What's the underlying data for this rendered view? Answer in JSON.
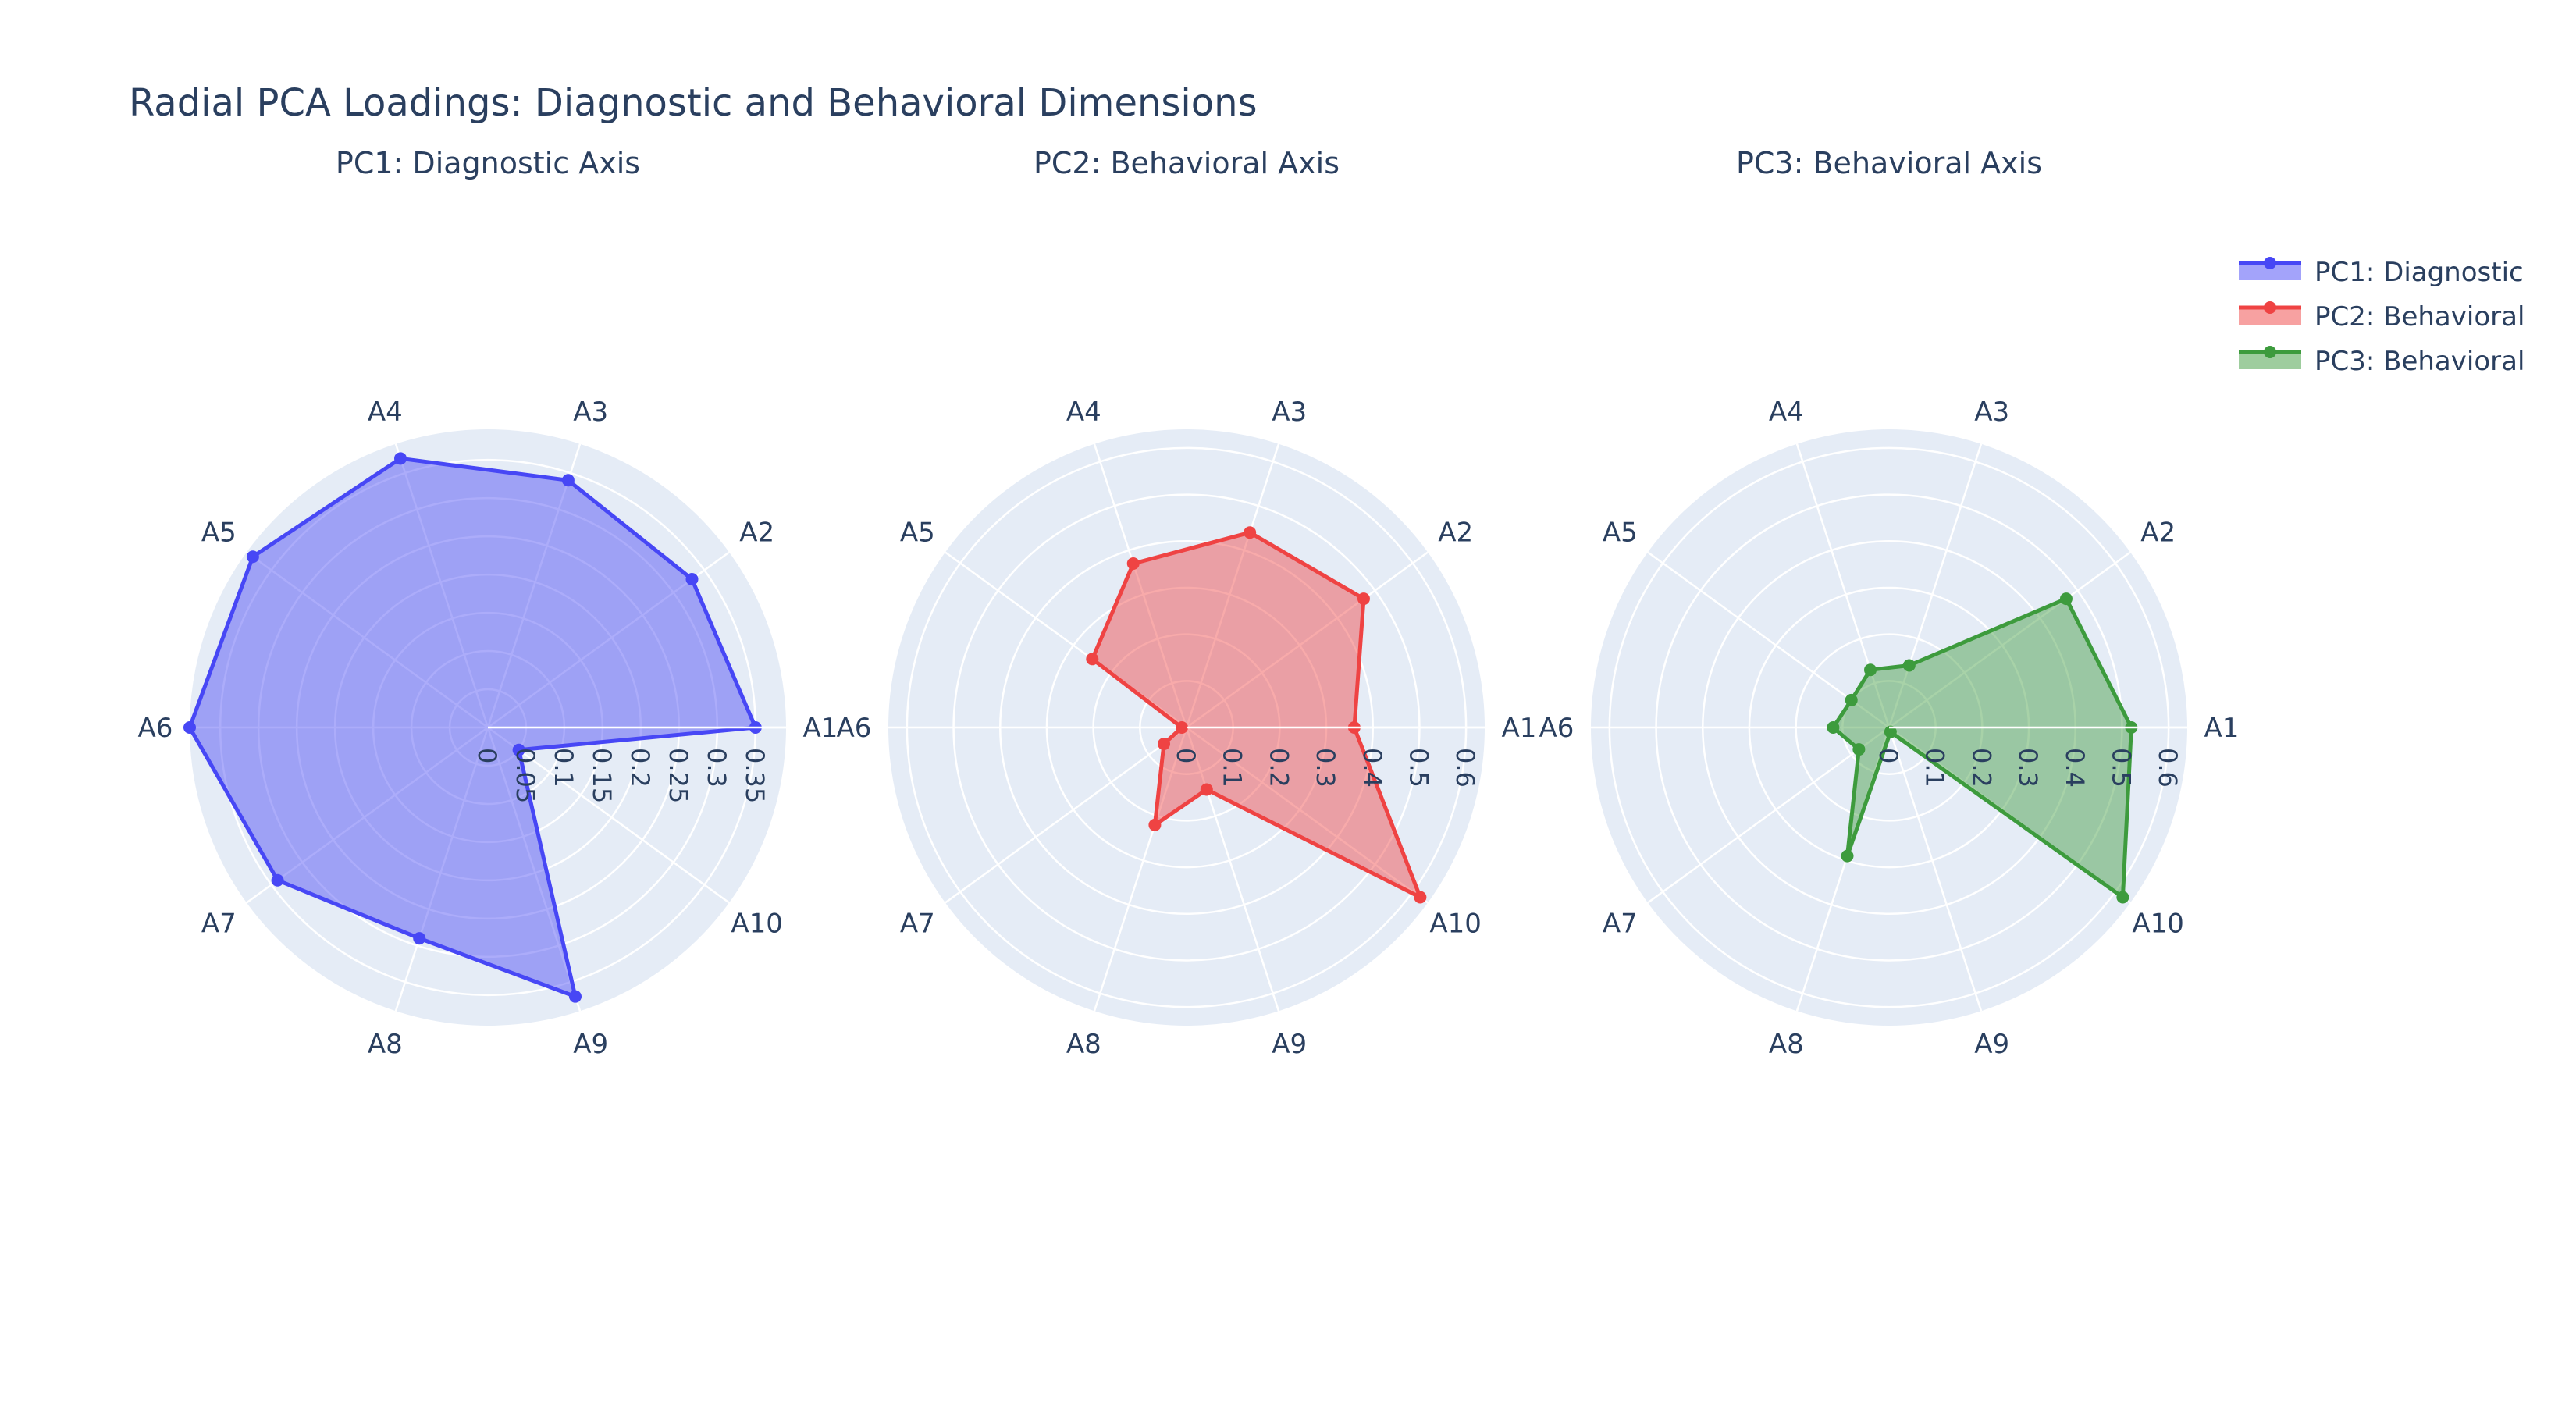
{
  "title": "Radial PCA Loadings: Diagnostic and Behavioral Dimensions",
  "chart_data": [
    {
      "type": "polar",
      "title": "PC1: Diagnostic Axis",
      "series_name": "PC1: Diagnostic",
      "color": "#4747f5",
      "categories": [
        "A1",
        "A2",
        "A3",
        "A4",
        "A5",
        "A6",
        "A7",
        "A8",
        "A9",
        "A10"
      ],
      "values": [
        0.35,
        0.33,
        0.34,
        0.37,
        0.38,
        0.39,
        0.34,
        0.29,
        0.37,
        0.05
      ],
      "radial_range": [
        0,
        0.39
      ],
      "radial_ticks": [
        "0",
        "0.05",
        "0.1",
        "0.15",
        "0.2",
        "0.25",
        "0.3",
        "0.35"
      ],
      "radial_tick_values": [
        0,
        0.05,
        0.1,
        0.15,
        0.2,
        0.25,
        0.3,
        0.35
      ]
    },
    {
      "type": "polar",
      "title": "PC2: Behavioral Axis",
      "series_name": "PC2: Behavioral",
      "color": "#ef4343",
      "categories": [
        "A1",
        "A2",
        "A3",
        "A4",
        "A5",
        "A6",
        "A7",
        "A8",
        "A9",
        "A10"
      ],
      "values": [
        0.36,
        0.47,
        0.44,
        0.37,
        0.25,
        0.01,
        0.06,
        0.22,
        0.14,
        0.62
      ],
      "radial_range": [
        0,
        0.64
      ],
      "radial_ticks": [
        "0",
        "0.1",
        "0.2",
        "0.3",
        "0.4",
        "0.5",
        "0.6"
      ],
      "radial_tick_values": [
        0,
        0.1,
        0.2,
        0.3,
        0.4,
        0.5,
        0.6
      ]
    },
    {
      "type": "polar",
      "title": "PC3: Behavioral Axis",
      "series_name": "PC3: Behavioral",
      "color": "#3d9b3d",
      "categories": [
        "A1",
        "A2",
        "A3",
        "A4",
        "A5",
        "A6",
        "A7",
        "A8",
        "A9",
        "A10"
      ],
      "values": [
        0.52,
        0.47,
        0.14,
        0.13,
        0.1,
        0.12,
        0.08,
        0.29,
        0.01,
        0.62
      ],
      "radial_range": [
        0,
        0.64
      ],
      "radial_ticks": [
        "0",
        "0.1",
        "0.2",
        "0.3",
        "0.4",
        "0.5",
        "0.6"
      ],
      "radial_tick_values": [
        0,
        0.1,
        0.2,
        0.3,
        0.4,
        0.5,
        0.6
      ]
    }
  ],
  "legend": [
    {
      "label": "PC1: Diagnostic",
      "color": "#4747f5"
    },
    {
      "label": "PC2: Behavioral",
      "color": "#ef4343"
    },
    {
      "label": "PC3: Behavioral",
      "color": "#3d9b3d"
    }
  ],
  "colors": {
    "polar_bg": "#e5ecf6",
    "grid": "#ffffff",
    "text": "#2a3f5f"
  }
}
